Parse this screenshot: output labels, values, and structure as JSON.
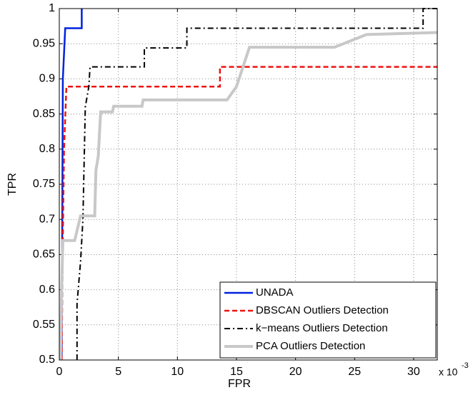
{
  "chart_data": {
    "type": "line",
    "xlabel": "FPR",
    "ylabel": "TPR",
    "x_multiplier": "x 10",
    "x_multiplier_exp": "-3",
    "xlim": [
      0,
      32
    ],
    "xticks": [
      0,
      5,
      10,
      15,
      20,
      25,
      30
    ],
    "ylim": [
      0.5,
      1
    ],
    "yticks": [
      0.5,
      0.55,
      0.6,
      0.65,
      0.7,
      0.75,
      0.8,
      0.85,
      0.9,
      0.95,
      1
    ],
    "grid": true,
    "legend": "lower right",
    "series": [
      {
        "name": "UNADA",
        "color": "#0022dd",
        "style": "solid",
        "linewidth": 2.5,
        "x": [
          0.2,
          0.3,
          0.5,
          1.9,
          1.9
        ],
        "values": [
          0.5,
          0.9,
          0.972,
          0.972,
          1
        ]
      },
      {
        "name": "DBSCAN Outliers Detection",
        "color": "#ee1111",
        "style": "dashed",
        "linewidth": 2.5,
        "x": [
          0.2,
          0.3,
          0.4,
          0.6,
          13.6,
          13.6,
          32
        ],
        "values": [
          0.5,
          0.675,
          0.8,
          0.889,
          0.889,
          0.917,
          0.917
        ]
      },
      {
        "name": "k−means Outliers Detection",
        "color": "#000000",
        "style": "dashdot",
        "linewidth": 2,
        "x": [
          1.5,
          1.5,
          1.8,
          2.0,
          2.2,
          2.5,
          2.6,
          7.2,
          7.2,
          10.8,
          10.8,
          30.8,
          30.8,
          32
        ],
        "values": [
          0.5,
          0.58,
          0.64,
          0.7,
          0.86,
          0.889,
          0.917,
          0.917,
          0.944,
          0.944,
          0.972,
          0.972,
          1,
          1
        ]
      },
      {
        "name": "PCA Outliers Detection",
        "color": "#c8c8c8",
        "style": "solid",
        "linewidth": 4,
        "x": [
          0.1,
          0.2,
          0.3,
          1.3,
          1.8,
          3.0,
          3.1,
          3.3,
          3.5,
          4.5,
          4.6,
          7.0,
          7.1,
          14.2,
          15.0,
          16.1,
          23.3,
          26.0,
          32
        ],
        "values": [
          0.5,
          0.6,
          0.67,
          0.67,
          0.705,
          0.705,
          0.77,
          0.79,
          0.853,
          0.853,
          0.861,
          0.861,
          0.87,
          0.87,
          0.889,
          0.945,
          0.945,
          0.963,
          0.966
        ]
      }
    ]
  }
}
